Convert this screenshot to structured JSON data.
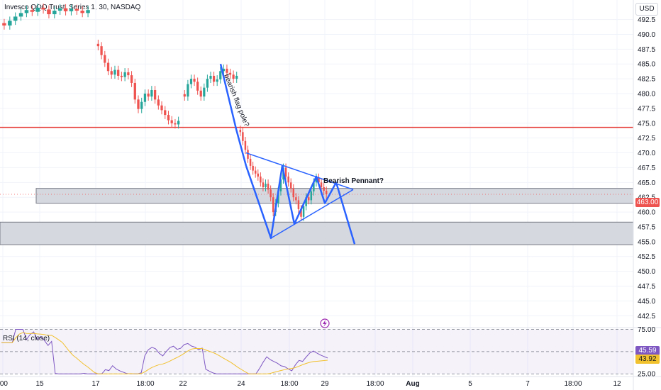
{
  "legend": {
    "symbol_text": "Invesco QQQ Trust, Series 1, 30, NASDAQ"
  },
  "currency": "USD",
  "chart_data": {
    "type": "candlestick",
    "instrument": "Invesco QQQ Trust, Series 1",
    "interval": "30",
    "exchange": "NASDAQ",
    "ylim": [
      440.5,
      495.8
    ],
    "y_ticks": [
      "492.5",
      "490.0",
      "487.5",
      "485.0",
      "482.5",
      "480.0",
      "477.5",
      "475.0",
      "472.5",
      "470.0",
      "467.5",
      "465.0",
      "462.5",
      "460.0",
      "457.5",
      "455.0",
      "452.5",
      "450.0",
      "447.5",
      "445.0",
      "442.5"
    ],
    "x_ticks": [
      ":00",
      "15",
      "17",
      "18:00",
      "22",
      "24",
      "18:00",
      "29",
      "18:00",
      "Aug",
      "5",
      "7",
      "18:00",
      "12"
    ],
    "close_series": [
      {
        "segment": "15-17",
        "values": [
          491.5,
          492.3,
          493.0,
          493.6,
          494.1,
          493.8,
          494.5,
          494.2,
          493.4,
          494.0,
          494.4,
          493.9,
          494.3,
          494.0,
          493.6,
          494.1
        ]
      },
      {
        "segment": "17-22",
        "values": [
          488.0,
          486.5,
          485.2,
          483.8,
          483.2,
          484.0,
          483.0,
          482.8,
          483.6,
          483.1,
          481.8,
          479.0,
          477.4,
          478.6,
          480.0,
          479.5,
          480.6,
          479.0,
          478.0,
          477.2,
          476.4,
          475.5,
          475.0,
          474.8,
          475.4
        ]
      },
      {
        "segment": "22-24",
        "values": [
          479.5,
          481.6,
          482.5,
          482.0,
          480.5,
          479.5,
          481.0,
          482.5,
          483.0,
          482.0,
          482.4,
          483.8,
          484.2,
          483.5,
          483.2,
          482.5,
          483.0
        ]
      },
      {
        "segment": "24-29",
        "values": [
          473.5,
          472.0,
          470.5,
          469.0,
          467.8,
          467.0,
          466.5,
          466.0,
          465.0,
          464.2,
          464.8,
          463.8,
          462.5,
          460.0,
          461.5,
          463.5,
          465.5,
          467.5,
          466.0,
          465.0,
          464.0,
          462.5,
          462.0,
          460.5,
          459.2,
          461.0,
          462.5,
          462.0,
          463.5,
          465.0,
          465.8,
          465.0,
          464.2,
          463.6,
          463.0
        ]
      }
    ],
    "annotations": [
      {
        "kind": "text",
        "text": "bearish flag pole?"
      },
      {
        "kind": "text",
        "text": "Bearish Pennant?"
      },
      {
        "kind": "hline",
        "price": 474.3,
        "color": "#e53935"
      },
      {
        "kind": "zone",
        "from": 461.5,
        "to": 464.0
      },
      {
        "kind": "zone",
        "from": 454.5,
        "to": 458.3
      },
      {
        "kind": "pattern",
        "name": "bearish flag pole",
        "points": [
          [
            485.0
          ],
          [
            474.0
          ],
          [
            467.0
          ]
        ]
      },
      {
        "kind": "pattern",
        "name": "pennant",
        "upper": [
          470.0,
          463.8
        ],
        "lower": [
          455.6,
          463.8
        ]
      },
      {
        "kind": "polyline",
        "prices": [
          455.6,
          467.8,
          458.0,
          466.0,
          461.5,
          465.0,
          454.6
        ]
      }
    ],
    "last_price": "463.00",
    "rsi": {
      "label": "RSI (14, close)",
      "levels": [
        75.0,
        45.59,
        25.0
      ],
      "value": "45.59",
      "ma_value": "43.92",
      "ylim": [
        22,
        77
      ],
      "ticks": [
        "75.00",
        "25.00"
      ]
    }
  },
  "colors": {
    "up": "#26a69a",
    "down": "#ef5350",
    "pattern": "#2962ff",
    "resistance": "#e53935",
    "zone": "#d1d4dc"
  }
}
